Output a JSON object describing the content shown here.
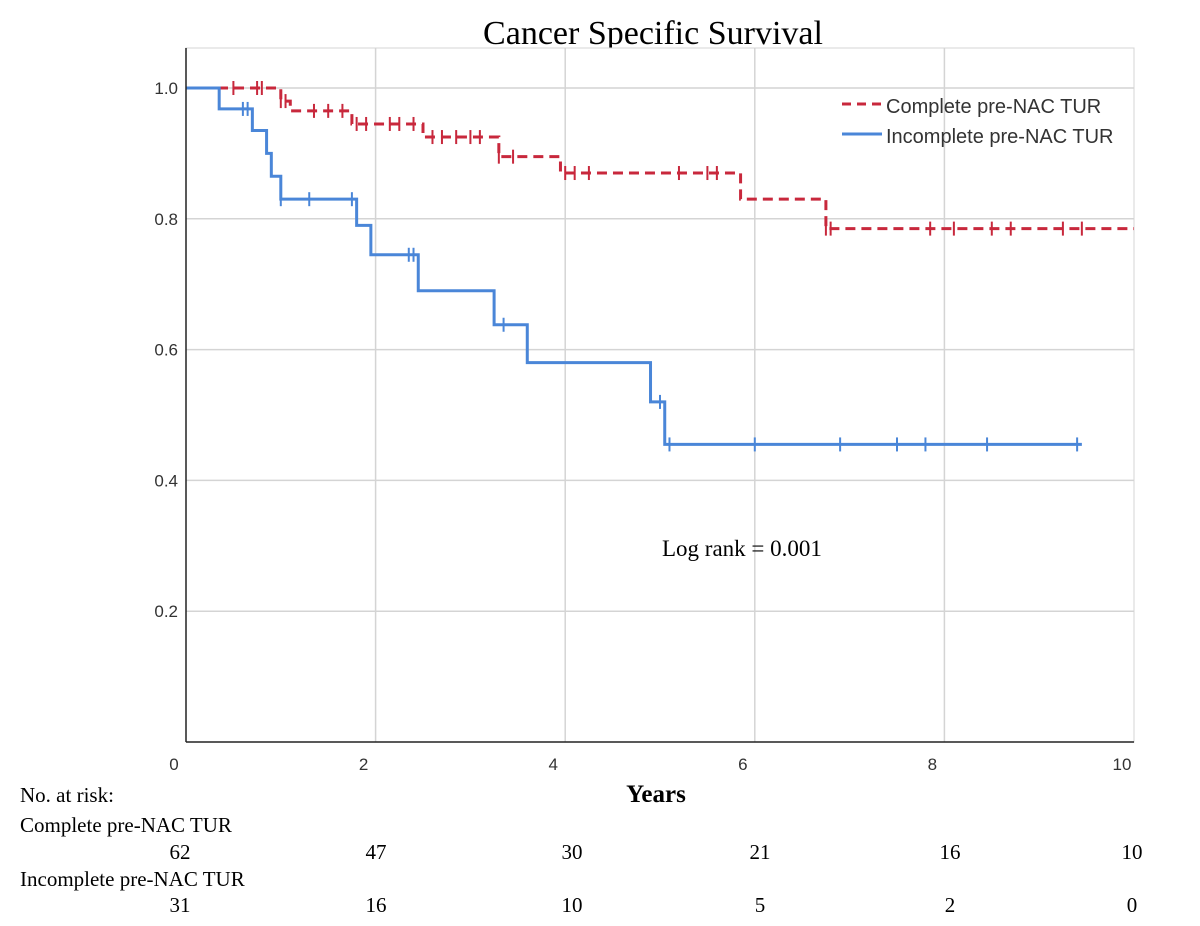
{
  "chart_data": {
    "type": "line",
    "subtype": "kaplan-meier",
    "title": "Cancer Specific Survival",
    "xlabel": "Years",
    "ylabel": "",
    "xlim": [
      0,
      10
    ],
    "ylim": [
      0,
      1.0
    ],
    "x_ticks": [
      0,
      2,
      4,
      6,
      8,
      10
    ],
    "y_ticks": [
      0.2,
      0.4,
      0.6,
      0.8,
      1.0
    ],
    "grid": true,
    "legend_position": "top-right",
    "series": [
      {
        "name": "Complete pre-NAC TUR",
        "color": "#c8283c",
        "line_style": "dashed",
        "steps": [
          [
            0,
            1.0
          ],
          [
            1.0,
            0.98
          ],
          [
            1.1,
            0.965
          ],
          [
            1.75,
            0.945
          ],
          [
            2.5,
            0.925
          ],
          [
            3.3,
            0.895
          ],
          [
            3.95,
            0.87
          ],
          [
            5.85,
            0.83
          ],
          [
            6.75,
            0.785
          ],
          [
            10,
            0.785
          ]
        ],
        "censored": [
          0.5,
          0.75,
          0.8,
          1.0,
          1.05,
          1.35,
          1.5,
          1.65,
          1.8,
          1.9,
          2.15,
          2.25,
          2.4,
          2.6,
          2.7,
          2.85,
          3.0,
          3.1,
          3.3,
          3.45,
          4.0,
          4.1,
          4.25,
          5.2,
          5.5,
          5.6,
          6.75,
          6.8,
          7.85,
          8.1,
          8.5,
          8.7,
          9.25,
          9.45
        ]
      },
      {
        "name": "Incomplete pre-NAC TUR",
        "color": "#4a86d8",
        "line_style": "solid",
        "steps": [
          [
            0,
            1.0
          ],
          [
            0.35,
            0.968
          ],
          [
            0.7,
            0.935
          ],
          [
            0.85,
            0.9
          ],
          [
            0.9,
            0.865
          ],
          [
            1.0,
            0.83
          ],
          [
            1.8,
            0.79
          ],
          [
            1.95,
            0.745
          ],
          [
            2.45,
            0.69
          ],
          [
            3.25,
            0.638
          ],
          [
            3.6,
            0.58
          ],
          [
            4.9,
            0.52
          ],
          [
            5.05,
            0.455
          ],
          [
            10,
            0.455
          ]
        ],
        "censored": [
          0.6,
          0.65,
          1.0,
          1.3,
          1.75,
          2.35,
          2.4,
          3.35,
          5.0,
          5.1,
          6.0,
          6.9,
          7.5,
          7.8,
          8.45,
          9.4
        ],
        "end_x": 9.45
      }
    ],
    "annotation": "Log rank = 0.001"
  },
  "risk_table": {
    "header": "No. at risk:",
    "groups": [
      {
        "label": "Complete pre-NAC TUR",
        "values": [
          "62",
          "47",
          "30",
          "21",
          "16",
          "10"
        ]
      },
      {
        "label": "Incomplete pre-NAC TUR",
        "values": [
          "31",
          "16",
          "10",
          "5",
          "2",
          "0"
        ]
      }
    ]
  }
}
